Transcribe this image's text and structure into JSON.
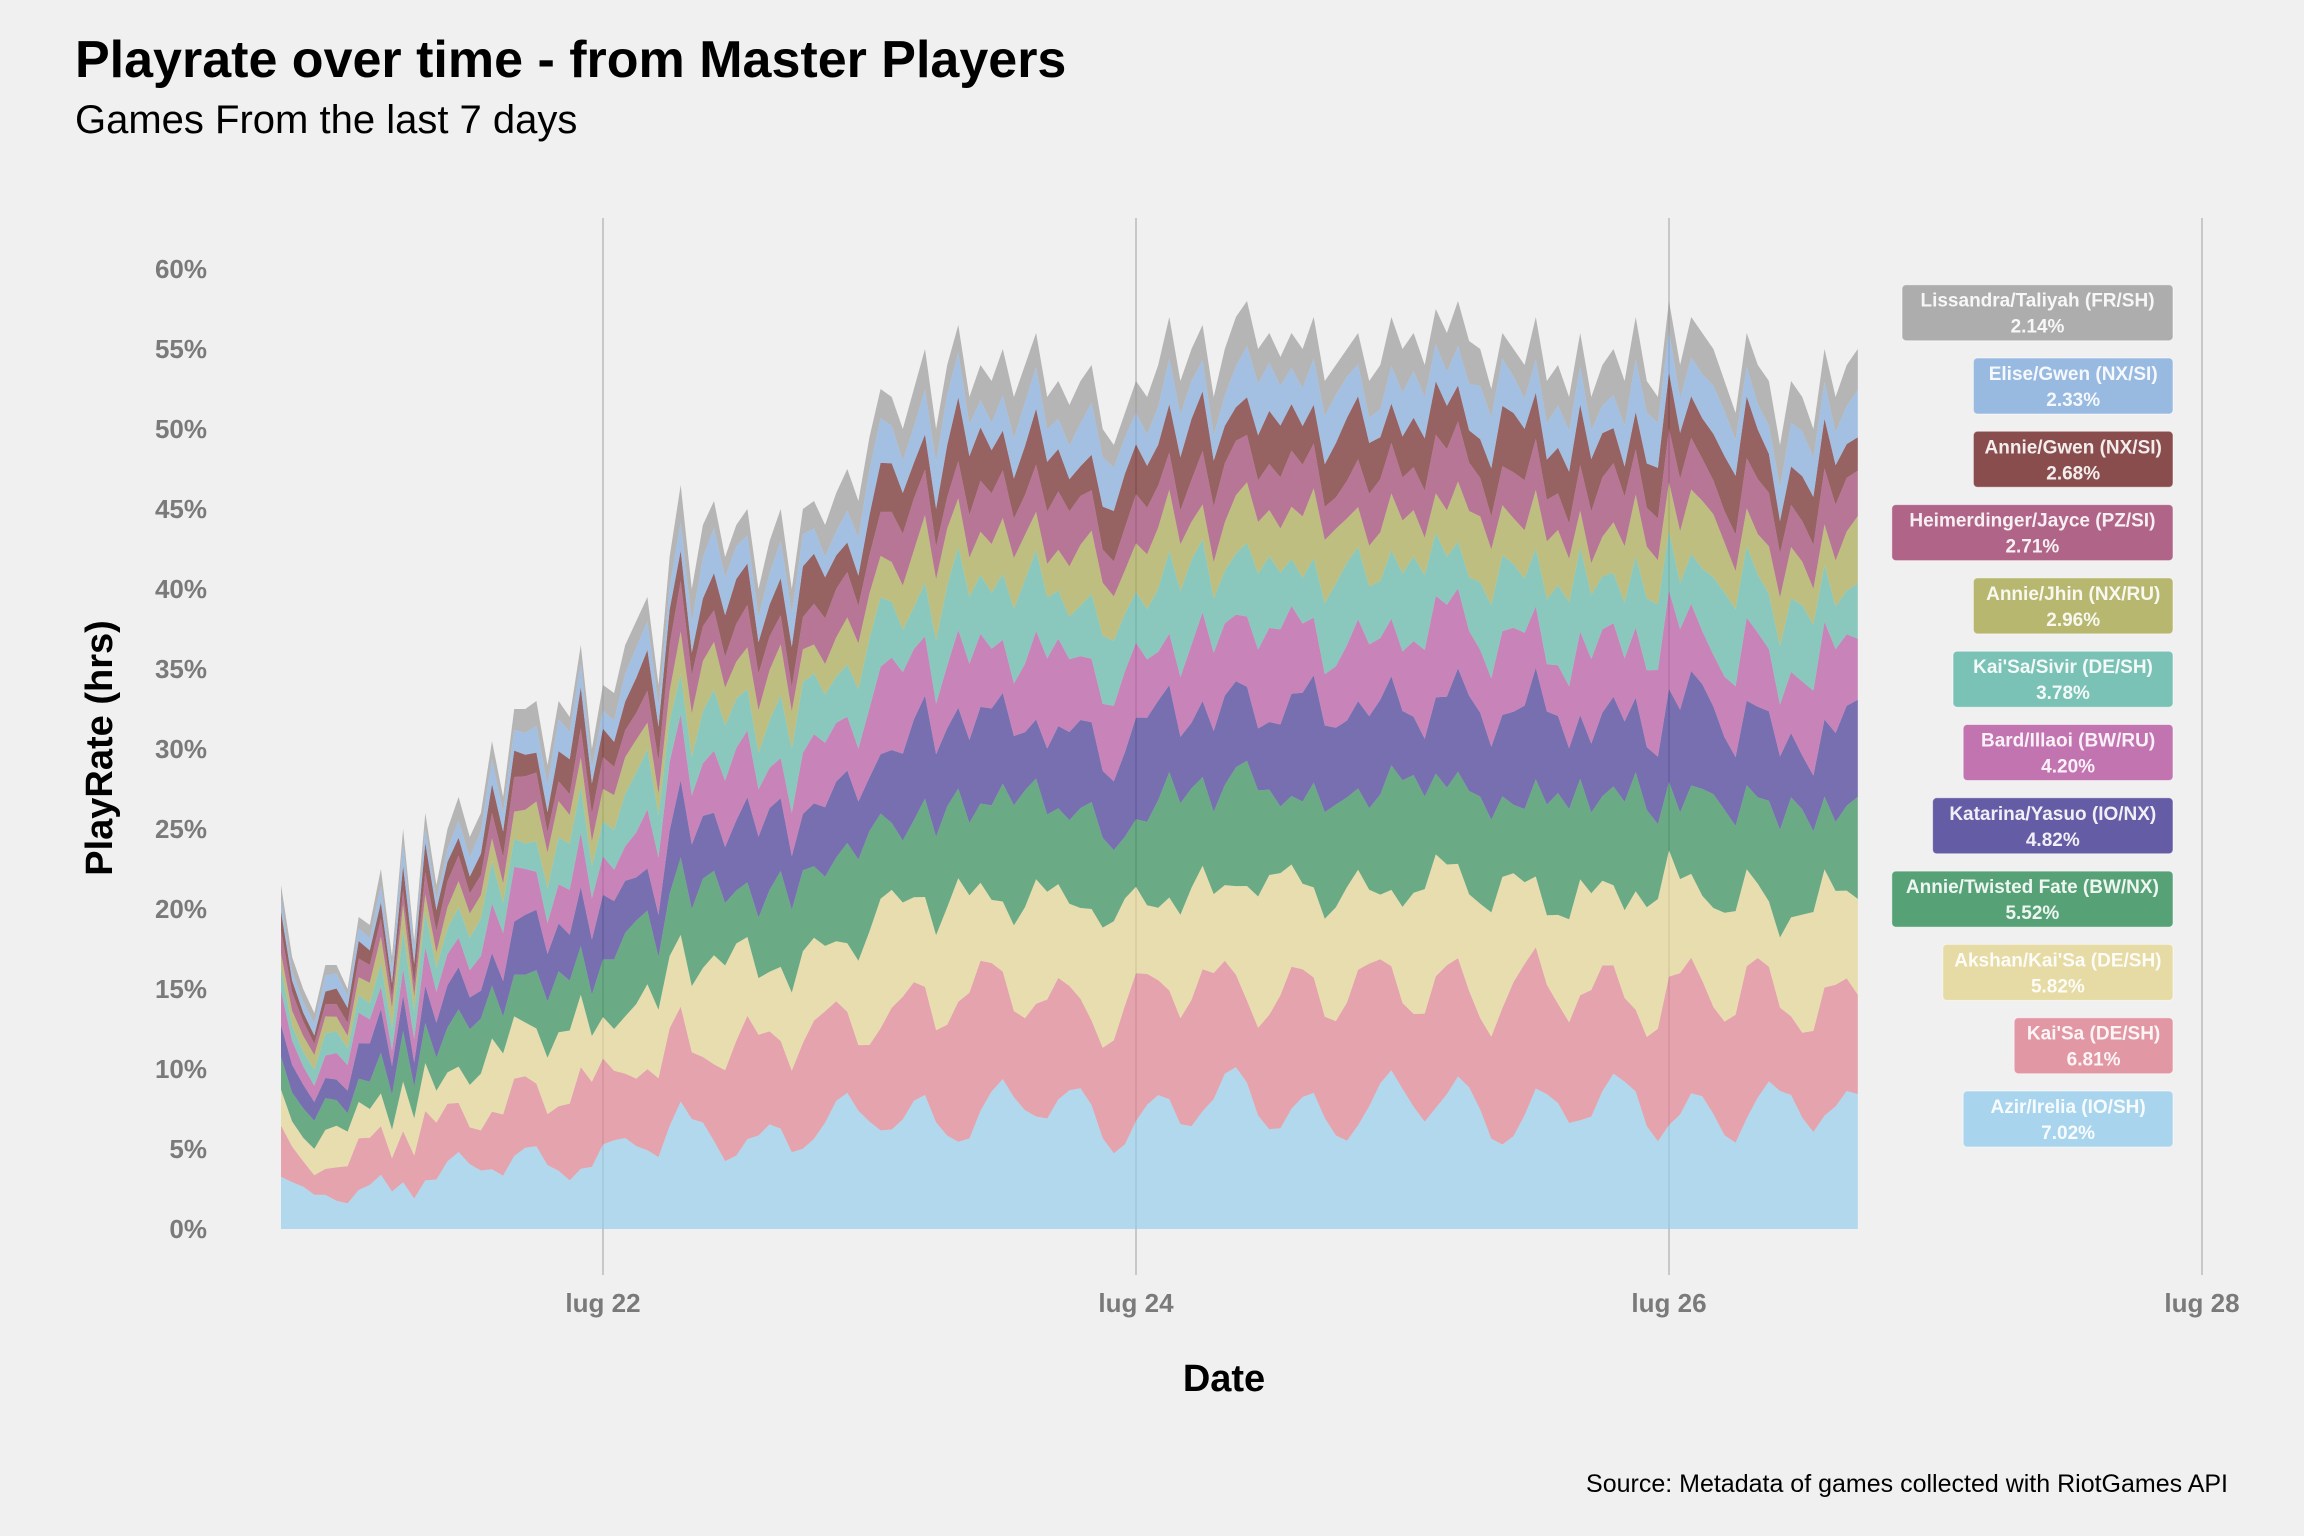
{
  "chart_data": {
    "type": "area",
    "stacked": true,
    "title": "Playrate over time - from Master Players",
    "subtitle": "Games From the last 7 days",
    "caption": "Source: Metadata of games collected with RiotGames API",
    "xlabel": "Date",
    "ylabel": "PlayRate (hrs)",
    "x_ticks": [
      "lug 22",
      "lug 24",
      "lug 26",
      "lug 28"
    ],
    "y_ticks": [
      "0%",
      "5%",
      "10%",
      "15%",
      "20%",
      "25%",
      "30%",
      "35%",
      "40%",
      "45%",
      "50%",
      "55%",
      "60%"
    ],
    "xlim": [
      "2022-07-20 18:00",
      "2022-07-28 00:00"
    ],
    "ylim": [
      0,
      60
    ],
    "grid": "vertical major lines",
    "x_start": "2022-07-20 19:00",
    "x_step_hours": 1,
    "totals": [
      21.5,
      17.0,
      15.0,
      13.5,
      16.5,
      16.5,
      15.0,
      19.5,
      19.0,
      22.5,
      17.0,
      25.0,
      18.0,
      26.0,
      21.5,
      25.0,
      27.0,
      24.5,
      26.0,
      30.5,
      27.0,
      32.5,
      32.5,
      33.0,
      29.0,
      33.0,
      32.0,
      36.5,
      30.0,
      34.0,
      33.5,
      36.5,
      38.0,
      39.5,
      34.0,
      42.0,
      46.5,
      40.0,
      44.0,
      45.5,
      42.0,
      44.0,
      45.0,
      40.0,
      43.0,
      45.0,
      40.0,
      45.0,
      45.5,
      44.0,
      46.0,
      47.5,
      45.5,
      49.5,
      52.5,
      52.0,
      50.0,
      52.5,
      55.0,
      50.0,
      54.0,
      56.5,
      52.0,
      54.0,
      53.0,
      55.0,
      52.0,
      54.0,
      56.0,
      52.0,
      53.0,
      51.5,
      53.0,
      54.0,
      50.0,
      49.0,
      51.0,
      53.0,
      52.0,
      54.0,
      57.0,
      53.0,
      55.0,
      56.5,
      52.0,
      55.0,
      57.0,
      58.0,
      55.0,
      56.0,
      54.5,
      56.0,
      55.0,
      57.0,
      53.0,
      54.0,
      55.0,
      56.0,
      53.0,
      54.0,
      57.0,
      55.0,
      56.0,
      54.0,
      57.5,
      56.0,
      58.0,
      55.5,
      55.0,
      52.5,
      56.0,
      55.0,
      54.0,
      57.0,
      53.0,
      54.0,
      52.0,
      56.0,
      52.0,
      54.0,
      55.0,
      53.0,
      57.0,
      53.0,
      52.0,
      58.0,
      54.0,
      57.0,
      56.0,
      55.0,
      53.0,
      51.0,
      56.0,
      54.0,
      53.0,
      49.0,
      53.0,
      52.0,
      50.0,
      55.0,
      52.0,
      54.0,
      55.0
    ],
    "series": [
      {
        "name": "Azir/Irelia (IO/SH)",
        "label": "7.02%",
        "color": "#94cdec",
        "share": 12.2
      },
      {
        "name": "Kai'Sa (DE/SH)",
        "label": "6.81%",
        "color": "#de7f8e",
        "share": 11.8
      },
      {
        "name": "Akshan/Kai'Sa (DE/SH)",
        "label": "5.82%",
        "color": "#e3d48f",
        "share": 10.1
      },
      {
        "name": "Annie/Twisted Fate (BW/NX)",
        "label": "5.52%",
        "color": "#2b8a54",
        "share": 9.6
      },
      {
        "name": "Katarina/Yasuo (IO/NX)",
        "label": "4.82%",
        "color": "#3e3291",
        "share": 8.4
      },
      {
        "name": "Bard/Illaoi (BW/RU)",
        "label": "4.20%",
        "color": "#b5519d",
        "share": 7.3
      },
      {
        "name": "Kai'Sa/Sivir (DE/SH)",
        "label": "3.78%",
        "color": "#5ab5a5",
        "share": 6.6
      },
      {
        "name": "Annie/Jhin (NX/RU)",
        "label": "2.96%",
        "color": "#a6a64b",
        "share": 5.1
      },
      {
        "name": "Heimerdinger/Jayce (PZ/SI)",
        "label": "2.71%",
        "color": "#9c3c6a",
        "share": 4.7
      },
      {
        "name": "Annie/Gwen (NX/SI)",
        "label": "2.68%",
        "color": "#6b1f1f",
        "share": 4.7
      },
      {
        "name": "Elise/Gwen (NX/SI)",
        "label": "2.33%",
        "color": "#7fa9db",
        "share": 4.0
      },
      {
        "name": "Lissandra/Taliyah (FR/SH)",
        "label": "2.14%",
        "color": "#9a9a9a",
        "share": 3.7
      }
    ]
  }
}
